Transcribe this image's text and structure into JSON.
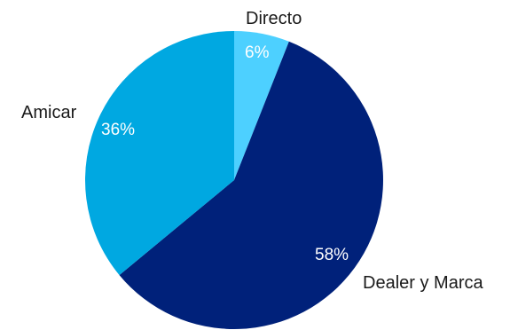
{
  "chart_data": {
    "type": "pie",
    "start_angle_deg": 0,
    "direction": "clockwise",
    "legend": "none",
    "slices": [
      {
        "label": "Directo",
        "value": 6,
        "value_label": "6%",
        "color": "#4dd0ff"
      },
      {
        "label": "Dealer y Marca",
        "value": 58,
        "value_label": "58%",
        "color": "#00217a"
      },
      {
        "label": "Amicar",
        "value": 36,
        "value_label": "36%",
        "color": "#00a8e1"
      }
    ]
  }
}
